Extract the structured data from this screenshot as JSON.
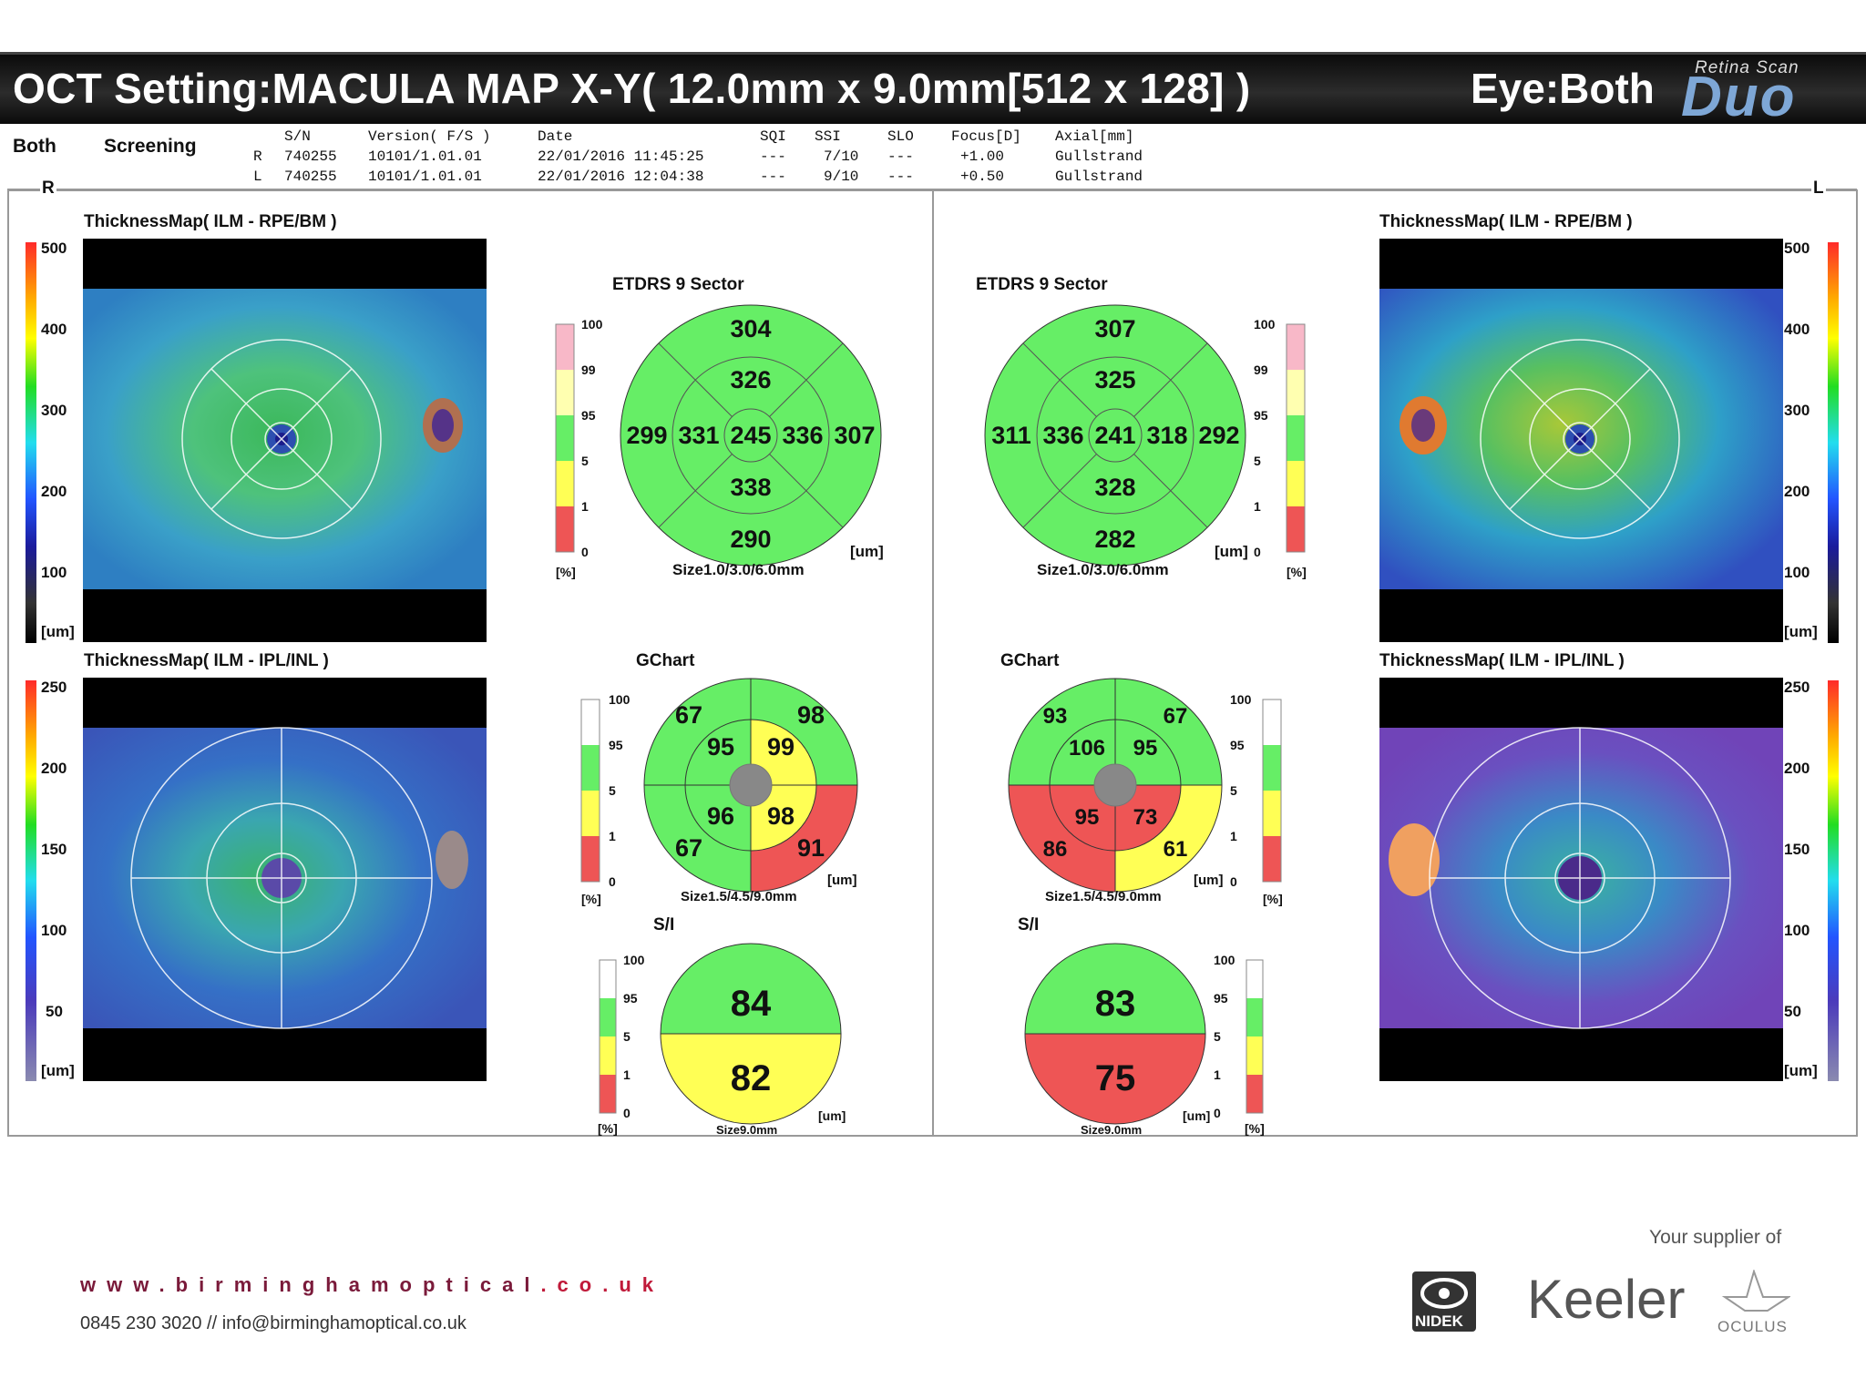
{
  "header": {
    "title": "OCT Setting:MACULA MAP X-Y( 12.0mm x 9.0mm[512 x 128] )",
    "eye": "Eye:Both",
    "logo_top": "Retina Scan",
    "logo_main": "Duo"
  },
  "info": {
    "eye_mode": "Both",
    "mode": "Screening",
    "columns": [
      "S/N",
      "Version( F/S )",
      "Date",
      "SQI",
      "SSI",
      "SLO",
      "Focus[D]",
      "Axial[mm]"
    ],
    "rows": [
      {
        "side": "R",
        "sn": "740255",
        "version": "10101/1.01.01",
        "date": "22/01/2016 11:45:25",
        "sqi": "---",
        "ssi": "7/10",
        "slo": "---",
        "focus": "+1.00",
        "axial": "Gullstrand"
      },
      {
        "side": "L",
        "sn": "740255",
        "version": "10101/1.01.01",
        "date": "22/01/2016 12:04:38",
        "sqi": "---",
        "ssi": "9/10",
        "slo": "---",
        "focus": "+0.50",
        "axial": "Gullstrand"
      }
    ],
    "right_marker": "R",
    "left_marker": "L"
  },
  "maps": {
    "top_title": "ThicknessMap( ILM - RPE/BM )",
    "bottom_title": "ThicknessMap( ILM - IPL/INL )",
    "top_scale": [
      "500",
      "400",
      "300",
      "200",
      "100",
      "[um]"
    ],
    "bottom_scale": [
      "250",
      "200",
      "150",
      "100",
      "50",
      "[um]"
    ]
  },
  "etdrs": {
    "title": "ETDRS 9 Sector",
    "size": "Size1.0/3.0/6.0mm",
    "unit": "[um]",
    "pct_unit": "[%]",
    "percentile_ticks": [
      "100",
      "99",
      "95",
      "5",
      "1",
      "0"
    ],
    "right": {
      "sup_outer": "304",
      "sup_inner": "326",
      "nas_outer": "299",
      "nas_inner": "331",
      "center": "245",
      "temp_inner": "336",
      "temp_outer": "307",
      "inf_inner": "338",
      "inf_outer": "290"
    },
    "left": {
      "sup_outer": "307",
      "sup_inner": "325",
      "temp_outer": "311",
      "temp_inner": "336",
      "center": "241",
      "nas_inner": "318",
      "nas_outer": "292",
      "inf_inner": "328",
      "inf_outer": "282"
    }
  },
  "gchart": {
    "title": "GChart",
    "size": "Size1.5/4.5/9.0mm",
    "unit": "[um]",
    "pct_unit": "[%]",
    "percentile_ticks": [
      "100",
      "95",
      "5",
      "1",
      "0"
    ],
    "right": {
      "outer": [
        "67",
        "98",
        "67",
        "91"
      ],
      "inner": [
        "95",
        "99",
        "96",
        "98"
      ]
    },
    "left": {
      "outer": [
        "93",
        "67",
        "86",
        "61"
      ],
      "inner": [
        "106",
        "95",
        "95",
        "73"
      ]
    }
  },
  "si": {
    "title": "S/I",
    "size": "Size9.0mm",
    "unit": "[um]",
    "pct_unit": "[%]",
    "percentile_ticks": [
      "100",
      "95",
      "5",
      "1",
      "0"
    ],
    "right": {
      "superior": "84",
      "inferior": "82"
    },
    "left": {
      "superior": "83",
      "inferior": "75"
    }
  },
  "colors": {
    "normal": "#66ee66",
    "borderline": "#ffff55",
    "abnormal": "#ee5555",
    "above": "#f8b8c8",
    "high": "#ffffb0"
  },
  "footer": {
    "url_pre": "www.birminghamoptical",
    "url_post": ".co.uk",
    "contact": "0845 230 3020 // info@birminghamoptical.co.uk",
    "supplier": "Your supplier of",
    "brands": [
      "NIDEK",
      "Keeler",
      "OCULUS"
    ]
  }
}
